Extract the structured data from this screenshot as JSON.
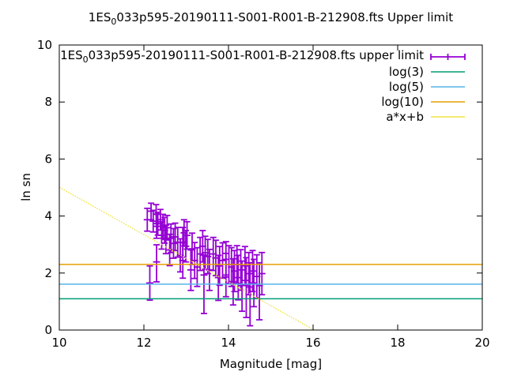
{
  "title": {
    "prefix": "1ES",
    "sub": "0",
    "rest": "033p595-20190111-S001-R001-B-212908.fts Upper limit"
  },
  "colors": {
    "errorbars": "#9400D3",
    "log3": "#009E73",
    "log5": "#56B4E9",
    "log10": "#E69F00",
    "fit": "#F0E442",
    "axis": "#000000",
    "background": "#FFFFFF"
  },
  "chart_data": {
    "type": "scatter",
    "title": "1ES_0033p595-20190111-S001-R001-B-212908.fts Upper limit",
    "xlabel": "Magnitude [mag]",
    "ylabel": "ln sn",
    "xlim": [
      10,
      20
    ],
    "ylim": [
      0,
      10
    ],
    "xticks": [
      10,
      12,
      14,
      16,
      18,
      20
    ],
    "yticks": [
      0,
      2,
      4,
      6,
      8,
      10
    ],
    "grid": false,
    "legend_position": "inside top right",
    "series": [
      {
        "key": "upper-limit-errorbars",
        "name": "1ES_0033p595-20190111-S001-R001-B-212908.fts upper limit",
        "label_parts": [
          {
            "t": "1ES"
          },
          {
            "t": "0",
            "sub": true
          },
          {
            "t": "033p595-20190111-S001-R001-B-212908.fts upper limit"
          }
        ],
        "type": "errorbars",
        "color": "#9400D3",
        "points": [
          [
            12.08,
            3.87,
            0.4,
            0.4
          ],
          [
            12.14,
            1.65,
            0.6,
            0.6
          ],
          [
            12.17,
            4.17,
            0.3,
            0.28
          ],
          [
            12.22,
            3.82,
            0.38,
            0.38
          ],
          [
            12.29,
            4.07,
            0.33,
            0.33
          ],
          [
            12.3,
            3.64,
            0.42,
            0.42
          ],
          [
            12.3,
            2.39,
            0.7,
            0.6
          ],
          [
            12.33,
            3.73,
            0.4,
            0.4
          ],
          [
            12.39,
            3.87,
            0.36,
            0.36
          ],
          [
            12.42,
            3.32,
            0.48,
            0.48
          ],
          [
            12.45,
            3.64,
            0.42,
            0.42
          ],
          [
            12.49,
            3.5,
            0.45,
            0.45
          ],
          [
            12.52,
            3.18,
            0.5,
            0.5
          ],
          [
            12.55,
            3.59,
            0.43,
            0.43
          ],
          [
            12.61,
            2.81,
            0.55,
            0.55
          ],
          [
            12.64,
            3.22,
            0.5,
            0.5
          ],
          [
            12.7,
            3.04,
            0.52,
            0.52
          ],
          [
            12.74,
            3.27,
            0.48,
            0.48
          ],
          [
            12.8,
            3.08,
            0.52,
            0.52
          ],
          [
            12.86,
            2.62,
            0.58,
            0.58
          ],
          [
            12.92,
            3.08,
            0.52,
            0.52
          ],
          [
            12.92,
            2.44,
            0.62,
            0.62
          ],
          [
            12.95,
            3.41,
            0.46,
            0.46
          ],
          [
            12.99,
            2.94,
            0.55,
            0.55
          ],
          [
            13.02,
            3.32,
            0.48,
            0.48
          ],
          [
            13.11,
            2.11,
            0.72,
            0.7
          ],
          [
            13.14,
            2.85,
            0.55,
            0.55
          ],
          [
            13.2,
            2.44,
            0.63,
            0.63
          ],
          [
            13.26,
            2.21,
            0.68,
            0.68
          ],
          [
            13.33,
            2.67,
            0.58,
            0.58
          ],
          [
            13.39,
            2.94,
            0.55,
            0.55
          ],
          [
            13.42,
            1.93,
            1.35,
            0.7
          ],
          [
            13.45,
            2.71,
            0.58,
            0.58
          ],
          [
            13.51,
            2.58,
            0.6,
            0.6
          ],
          [
            13.55,
            2.11,
            0.72,
            0.72
          ],
          [
            13.64,
            2.67,
            0.58,
            0.58
          ],
          [
            13.7,
            2.53,
            0.62,
            0.62
          ],
          [
            13.76,
            1.84,
            0.8,
            0.78
          ],
          [
            13.79,
            2.25,
            0.68,
            0.68
          ],
          [
            13.86,
            2.44,
            0.62,
            0.62
          ],
          [
            13.94,
            2.48,
            0.62,
            0.62
          ],
          [
            13.94,
            1.93,
            0.76,
            0.76
          ],
          [
            14.01,
            2.3,
            0.66,
            0.66
          ],
          [
            14.07,
            2.21,
            0.68,
            0.68
          ],
          [
            14.11,
            1.7,
            0.82,
            0.8
          ],
          [
            14.14,
            2.07,
            0.72,
            0.72
          ],
          [
            14.2,
            2.3,
            0.66,
            0.66
          ],
          [
            14.23,
            1.84,
            0.78,
            0.78
          ],
          [
            14.29,
            2.11,
            0.71,
            0.71
          ],
          [
            14.32,
            1.56,
            0.9,
            0.86
          ],
          [
            14.39,
            2.25,
            0.68,
            0.68
          ],
          [
            14.42,
            1.74,
            1.3,
            0.8
          ],
          [
            14.48,
            1.98,
            0.74,
            0.74
          ],
          [
            14.51,
            1.51,
            1.36,
            0.85
          ],
          [
            14.57,
            2.07,
            0.72,
            0.72
          ],
          [
            14.6,
            1.65,
            0.83,
            0.83
          ],
          [
            14.67,
            1.88,
            0.76,
            0.76
          ],
          [
            14.73,
            1.56,
            1.2,
            0.8
          ],
          [
            14.79,
            1.98,
            0.74,
            0.74
          ]
        ]
      },
      {
        "key": "log3-line",
        "name": "log(3)",
        "type": "hline",
        "color": "#009E73",
        "value": 1.0986
      },
      {
        "key": "log5-line",
        "name": "log(5)",
        "type": "hline",
        "color": "#56B4E9",
        "value": 1.6094
      },
      {
        "key": "log10-line",
        "name": "log(10)",
        "type": "hline",
        "color": "#E69F00",
        "value": 2.3026
      },
      {
        "key": "fit-line",
        "name": "a*x+b",
        "type": "linear",
        "color": "#F0E442",
        "a": -0.831,
        "b": 13.32,
        "clip_y_min": 0
      }
    ]
  }
}
